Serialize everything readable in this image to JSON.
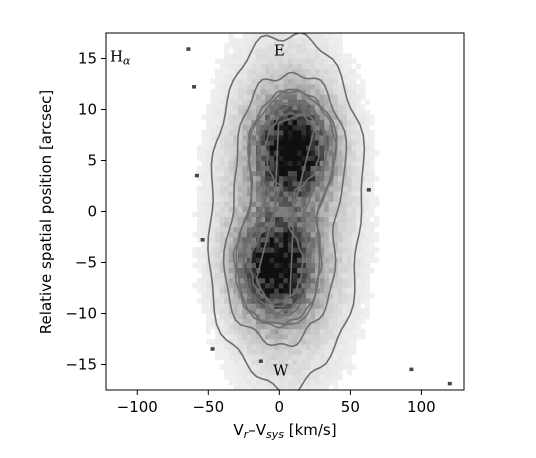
{
  "chart_data": {
    "type": "heatmap",
    "xlabel": "V",
    "xlabel_sub_r": "r",
    "xlabel_mid": "–V",
    "xlabel_sub_sys": "sys",
    "xlabel_units": " [km/s]",
    "ylabel": "Relative spatial position [arcsec]",
    "xlim": [
      -122,
      130
    ],
    "ylim": [
      -17.5,
      17.5
    ],
    "xticks": [
      -100,
      -50,
      0,
      50,
      100
    ],
    "xtick_labels": [
      "−100",
      "−50",
      "0",
      "50",
      "100"
    ],
    "yticks": [
      15,
      10,
      5,
      0,
      -5,
      -10,
      -15
    ],
    "ytick_labels": [
      "15",
      "10",
      "5",
      "0",
      "−5",
      "−10",
      "−15"
    ],
    "grid": false,
    "colormap": "gray_r",
    "contour_color": "#6e6e6e",
    "annotations": [
      {
        "text": "H",
        "sub": "α",
        "x": -112,
        "y": 15.2
      },
      {
        "text": "E",
        "x": 0,
        "y": 15.8
      },
      {
        "text": "W",
        "x": 1,
        "y": -15.6
      }
    ],
    "emission_components": [
      {
        "name": "east-lobe",
        "x_center": 10,
        "y_center": 6.3,
        "x_sigma": 17,
        "y_sigma": 3.1,
        "peak": 1.0
      },
      {
        "name": "west-lobe",
        "x_center": -3,
        "y_center": -5.5,
        "x_sigma": 17,
        "y_sigma": 3.2,
        "peak": 0.95
      },
      {
        "name": "halo",
        "x_center": 5,
        "y_center": 0,
        "x_sigma": 28,
        "y_sigma": 9.5,
        "peak": 0.32
      }
    ],
    "contour_levels": [
      0.06,
      0.18,
      0.35,
      0.55,
      0.75
    ],
    "outlier_points": [
      {
        "x": -64,
        "y": 15.9
      },
      {
        "x": -60,
        "y": 12.2
      },
      {
        "x": 93,
        "y": -15.5
      },
      {
        "x": 120,
        "y": -16.9
      },
      {
        "x": -13,
        "y": -14.7
      },
      {
        "x": 63,
        "y": 2.1
      },
      {
        "x": -58,
        "y": 3.5
      },
      {
        "x": -54,
        "y": -2.8
      },
      {
        "x": -47,
        "y": -13.5
      }
    ]
  }
}
